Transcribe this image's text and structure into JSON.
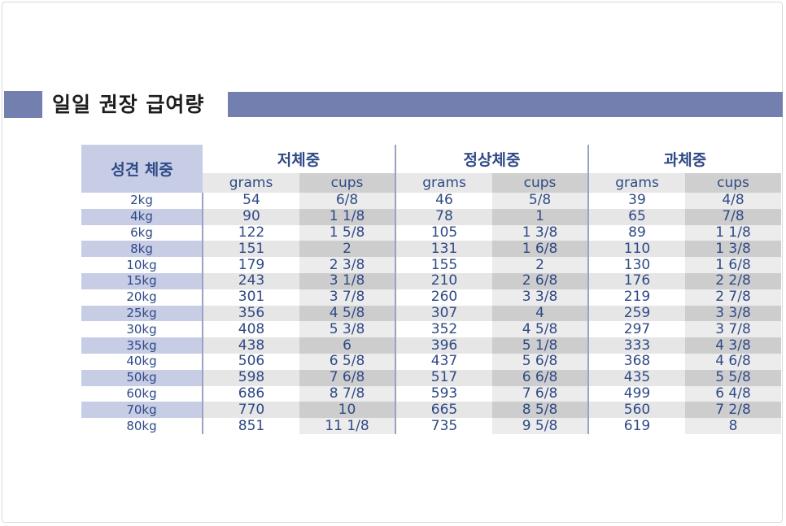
{
  "title": "일일 권장 급여량",
  "table": {
    "weight_header": "성견 체중",
    "groups": [
      "저체중",
      "정상체중",
      "과체중"
    ],
    "sub_headers": [
      "grams",
      "cups",
      "grams",
      "cups",
      "grams",
      "cups"
    ],
    "rows": [
      [
        "2kg",
        "54",
        "6/8",
        "46",
        "5/8",
        "39",
        "4/8"
      ],
      [
        "4kg",
        "90",
        "1 1/8",
        "78",
        "1",
        "65",
        "7/8"
      ],
      [
        "6kg",
        "122",
        "1 5/8",
        "105",
        "1 3/8",
        "89",
        "1 1/8"
      ],
      [
        "8kg",
        "151",
        "2",
        "131",
        "1 6/8",
        "110",
        "1 3/8"
      ],
      [
        "10kg",
        "179",
        "2 3/8",
        "155",
        "2",
        "130",
        "1 6/8"
      ],
      [
        "15kg",
        "243",
        "3 1/8",
        "210",
        "2 6/8",
        "176",
        "2 2/8"
      ],
      [
        "20kg",
        "301",
        "3 7/8",
        "260",
        "3 3/8",
        "219",
        "2 7/8"
      ],
      [
        "25kg",
        "356",
        "4 5/8",
        "307",
        "4",
        "259",
        "3 3/8"
      ],
      [
        "30kg",
        "408",
        "5 3/8",
        "352",
        "4 5/8",
        "297",
        "3 7/8"
      ],
      [
        "35kg",
        "438",
        "6",
        "396",
        "5 1/8",
        "333",
        "4 3/8"
      ],
      [
        "40kg",
        "506",
        "6 5/8",
        "437",
        "5 6/8",
        "368",
        "4 6/8"
      ],
      [
        "50kg",
        "598",
        "7 6/8",
        "517",
        "6 6/8",
        "435",
        "5 5/8"
      ],
      [
        "60kg",
        "686",
        "8 7/8",
        "593",
        "7 6/8",
        "499",
        "6 4/8"
      ],
      [
        "70kg",
        "770",
        "10",
        "665",
        "8 5/8",
        "560",
        "7 2/8"
      ],
      [
        "80kg",
        "851",
        "11 1/8",
        "735",
        "9 5/8",
        "619",
        "8"
      ]
    ]
  },
  "colors": {
    "accent": "#727faf",
    "header_fill": "#c8cde6",
    "text": "#2f4a86"
  }
}
